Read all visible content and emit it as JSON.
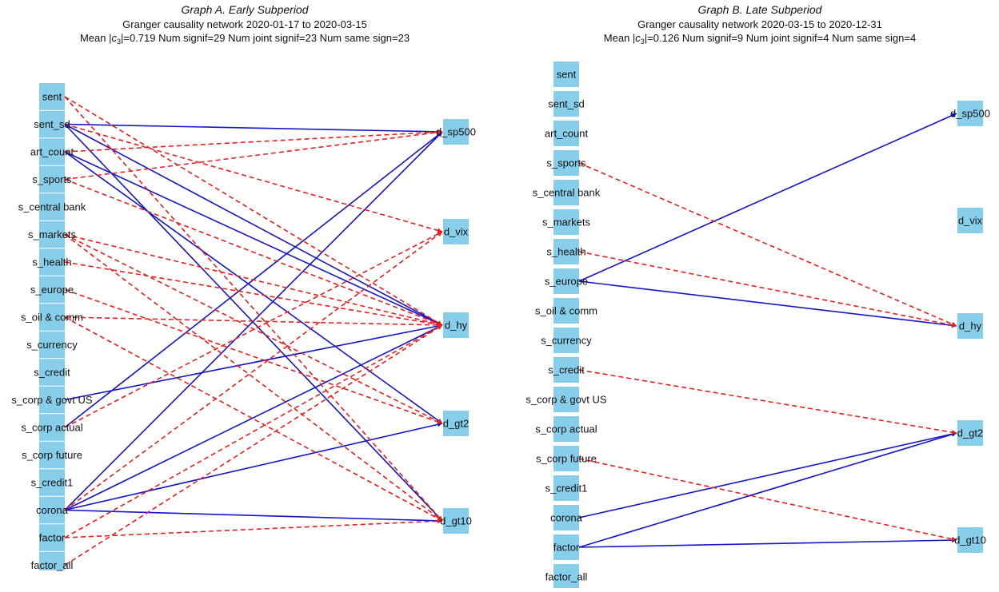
{
  "colors": {
    "node": "#87ceeb",
    "positive": "#1414c8",
    "negative": "#e81e1e"
  },
  "graphs": [
    {
      "title": "Graph A. Early Subperiod",
      "subtitle1": "Granger causality network 2020-01-17 to 2020-03-15",
      "stats_pre": "Mean |",
      "stats_c": "c",
      "stats_sub": "3",
      "stats_post": "|=0.719 Num signif=29 Num joint signif=23 Num same sign=23",
      "left_nodes": [
        "sent",
        "sent_sd",
        "art_count",
        "s_sports",
        "s_central bank",
        "s_markets",
        "s_health",
        "s_europe",
        "s_oil & comm",
        "s_currency",
        "s_credit",
        "s_corp & govt US",
        "s_corp actual",
        "s_corp future",
        "s_credit1",
        "corona",
        "factor",
        "factor_all"
      ],
      "right_nodes": [
        "d_sp500",
        "d_vix",
        "d_hy",
        "d_gt2",
        "d_gt10"
      ],
      "edges": [
        {
          "from": "sent_sd",
          "to": "d_sp500",
          "sign": "positive"
        },
        {
          "from": "sent_sd",
          "to": "d_hy",
          "sign": "positive"
        },
        {
          "from": "sent_sd",
          "to": "d_gt10",
          "sign": "positive"
        },
        {
          "from": "art_count",
          "to": "d_hy",
          "sign": "positive"
        },
        {
          "from": "art_count",
          "to": "d_gt2",
          "sign": "positive"
        },
        {
          "from": "s_corp & govt US",
          "to": "d_hy",
          "sign": "positive"
        },
        {
          "from": "s_corp actual",
          "to": "d_sp500",
          "sign": "positive"
        },
        {
          "from": "corona",
          "to": "d_sp500",
          "sign": "positive"
        },
        {
          "from": "corona",
          "to": "d_hy",
          "sign": "positive"
        },
        {
          "from": "corona",
          "to": "d_gt2",
          "sign": "positive"
        },
        {
          "from": "corona",
          "to": "d_gt10",
          "sign": "positive"
        },
        {
          "from": "sent",
          "to": "d_hy",
          "sign": "negative"
        },
        {
          "from": "sent",
          "to": "d_gt10",
          "sign": "negative"
        },
        {
          "from": "sent_sd",
          "to": "d_vix",
          "sign": "negative"
        },
        {
          "from": "art_count",
          "to": "d_sp500",
          "sign": "negative"
        },
        {
          "from": "s_sports",
          "to": "d_sp500",
          "sign": "negative"
        },
        {
          "from": "s_sports",
          "to": "d_hy",
          "sign": "negative"
        },
        {
          "from": "s_markets",
          "to": "d_hy",
          "sign": "negative"
        },
        {
          "from": "s_markets",
          "to": "d_gt2",
          "sign": "negative"
        },
        {
          "from": "s_markets",
          "to": "d_gt10",
          "sign": "negative"
        },
        {
          "from": "s_health",
          "to": "d_hy",
          "sign": "negative"
        },
        {
          "from": "s_europe",
          "to": "d_gt2",
          "sign": "negative"
        },
        {
          "from": "s_oil & comm",
          "to": "d_hy",
          "sign": "negative"
        },
        {
          "from": "s_oil & comm",
          "to": "d_gt10",
          "sign": "negative"
        },
        {
          "from": "s_corp actual",
          "to": "d_vix",
          "sign": "negative"
        },
        {
          "from": "corona",
          "to": "d_vix",
          "sign": "negative"
        },
        {
          "from": "factor",
          "to": "d_hy",
          "sign": "negative"
        },
        {
          "from": "factor",
          "to": "d_gt10",
          "sign": "negative"
        },
        {
          "from": "factor_all",
          "to": "d_hy",
          "sign": "negative"
        }
      ]
    },
    {
      "title": "Graph B. Late Subperiod",
      "subtitle1": "Granger causality network 2020-03-15 to 2020-12-31",
      "stats_pre": "Mean |",
      "stats_c": "c",
      "stats_sub": "3",
      "stats_post": "|=0.126 Num signif=9 Num joint signif=4 Num same sign=4",
      "left_nodes": [
        "sent",
        "sent_sd",
        "art_count",
        "s_sports",
        "s_central bank",
        "s_markets",
        "s_health",
        "s_europe",
        "s_oil & comm",
        "s_currency",
        "s_credit",
        "s_corp & govt US",
        "s_corp actual",
        "s_corp future",
        "s_credit1",
        "corona",
        "factor",
        "factor_all"
      ],
      "right_nodes": [
        "d_sp500",
        "d_vix",
        "d_hy",
        "d_gt2",
        "d_gt10"
      ],
      "edges": [
        {
          "from": "s_europe",
          "to": "d_sp500",
          "sign": "positive"
        },
        {
          "from": "s_europe",
          "to": "d_hy",
          "sign": "positive"
        },
        {
          "from": "corona",
          "to": "d_gt2",
          "sign": "positive"
        },
        {
          "from": "factor",
          "to": "d_gt2",
          "sign": "positive"
        },
        {
          "from": "factor",
          "to": "d_gt10",
          "sign": "positive"
        },
        {
          "from": "s_sports",
          "to": "d_hy",
          "sign": "negative"
        },
        {
          "from": "s_health",
          "to": "d_hy",
          "sign": "negative"
        },
        {
          "from": "s_credit",
          "to": "d_gt2",
          "sign": "negative"
        },
        {
          "from": "s_corp future",
          "to": "d_gt10",
          "sign": "negative"
        }
      ]
    }
  ]
}
